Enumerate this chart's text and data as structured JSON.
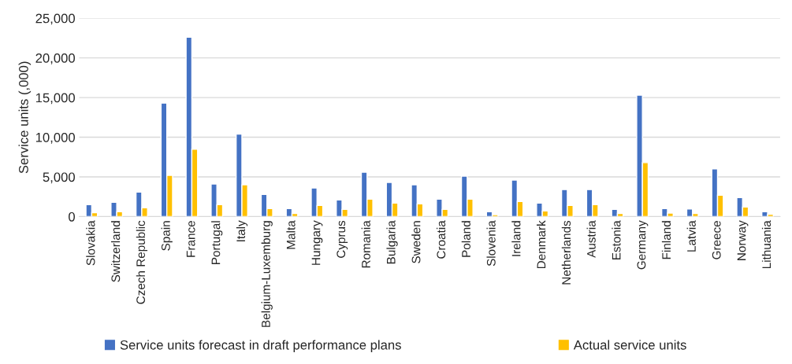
{
  "chart_data": {
    "type": "bar",
    "ylabel": "Service units (,000)",
    "categories": [
      "Slovakia",
      "Switzerland",
      "Czech Republic",
      "Spain",
      "France",
      "Portugal",
      "Italy",
      "Belgium-Luxemburg",
      "Malta",
      "Hungary",
      "Cyprus",
      "Romania",
      "Bulgaria",
      "Sweden",
      "Croatia",
      "Poland",
      "Slovenia",
      "Ireland",
      "Denmark",
      "Netherlands",
      "Austria",
      "Estonia",
      "Germany",
      "Finland",
      "Latvia",
      "Greece",
      "Norway",
      "Lithuania"
    ],
    "series": [
      {
        "name": "Service units forecast in draft performance plans",
        "color": "#4472c4",
        "values": [
          1500,
          1800,
          3100,
          14300,
          22600,
          4100,
          10400,
          2800,
          1000,
          3600,
          2100,
          5600,
          4300,
          4000,
          2200,
          5100,
          600,
          4600,
          1700,
          3400,
          3400,
          900,
          15300,
          1000,
          950,
          6000,
          2400,
          600
        ]
      },
      {
        "name": "Actual service units",
        "color": "#ffc000",
        "values": [
          500,
          600,
          1100,
          5200,
          8500,
          1500,
          4000,
          1000,
          400,
          1400,
          900,
          2200,
          1700,
          1600,
          900,
          2200,
          250,
          1900,
          700,
          1400,
          1500,
          400,
          6800,
          450,
          400,
          2700,
          1200,
          300
        ]
      }
    ],
    "ylim": [
      0,
      25000
    ],
    "yticks": [
      {
        "value": 0,
        "label": "0"
      },
      {
        "value": 5000,
        "label": "5,000"
      },
      {
        "value": 10000,
        "label": "10,000"
      },
      {
        "value": 15000,
        "label": "15,000"
      },
      {
        "value": 20000,
        "label": "20,000"
      },
      {
        "value": 25000,
        "label": "25,000"
      }
    ],
    "grid": "y",
    "legend": "bottom"
  }
}
